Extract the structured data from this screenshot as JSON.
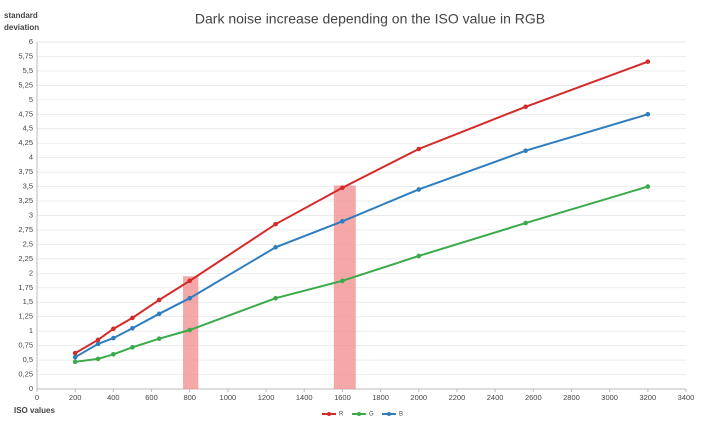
{
  "chart_data": {
    "type": "line",
    "title": "Dark noise increase depending  on the ISO value in RGB",
    "y_label": [
      "standard",
      "deviation"
    ],
    "x_label": "ISO values",
    "x": [
      200,
      320,
      400,
      500,
      640,
      800,
      1250,
      1600,
      2000,
      2560,
      3200
    ],
    "series": [
      {
        "name": "R",
        "color": "#d42a2a",
        "values": [
          0.62,
          0.85,
          1.04,
          1.23,
          1.54,
          1.87,
          2.85,
          3.48,
          4.15,
          4.88,
          5.66
        ]
      },
      {
        "name": "G",
        "color": "#3aaa4a",
        "values": [
          0.47,
          0.52,
          0.6,
          0.72,
          0.87,
          1.02,
          1.57,
          1.87,
          2.3,
          2.87,
          3.5
        ]
      },
      {
        "name": "B",
        "color": "#2e7ebf",
        "values": [
          0.55,
          0.78,
          0.88,
          1.05,
          1.3,
          1.57,
          2.45,
          2.9,
          3.45,
          4.12,
          4.75
        ]
      }
    ],
    "highlights": [
      {
        "x": [
          765,
          845
        ],
        "y": 1.95,
        "color": "#f28b8b"
      },
      {
        "x": [
          1555,
          1670
        ],
        "y": 3.52,
        "color": "#f28b8b"
      }
    ],
    "xlim": [
      0,
      3400
    ],
    "xticks": [
      0,
      200,
      400,
      600,
      800,
      1000,
      1200,
      1400,
      1600,
      1800,
      2000,
      2200,
      2400,
      2600,
      2800,
      3000,
      3200,
      3400
    ],
    "ylim": [
      0,
      6
    ],
    "yticks": [
      0,
      {
        "value": 0.25,
        "label": "0,25"
      },
      {
        "value": 0.5,
        "label": "0,5"
      },
      {
        "value": 0.75,
        "label": "0,75"
      },
      1,
      {
        "value": 1.25,
        "label": "1,25"
      },
      {
        "value": 1.5,
        "label": "1,5"
      },
      {
        "value": 1.75,
        "label": "1,75"
      },
      2,
      {
        "value": 2.25,
        "label": "2,25"
      },
      {
        "value": 2.5,
        "label": "2,5"
      },
      {
        "value": 2.75,
        "label": "2,75"
      },
      3,
      {
        "value": 3.25,
        "label": "3,25"
      },
      {
        "value": 3.5,
        "label": "3,5"
      },
      {
        "value": 3.75,
        "label": "3,75"
      },
      4,
      {
        "value": 4.25,
        "label": "4,25"
      },
      {
        "value": 4.5,
        "label": "4,5"
      },
      {
        "value": 4.75,
        "label": "4,75"
      },
      5,
      {
        "value": 5.25,
        "label": "5,25"
      },
      {
        "value": 5.5,
        "label": "5,5"
      },
      {
        "value": 5.75,
        "label": "5,75"
      },
      6
    ],
    "grid": true,
    "legend": "bottom"
  }
}
